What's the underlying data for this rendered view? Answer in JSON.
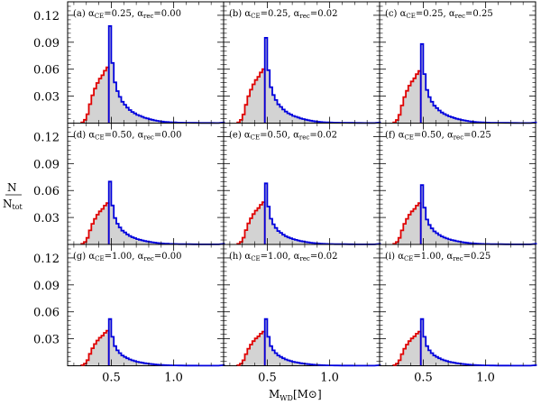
{
  "chart_data": {
    "type": "histogram-grid",
    "xlabel": {
      "main": "M",
      "sub": "WD",
      "unit": "[M",
      "unit_sym": "⊙",
      "unit_close": "]"
    },
    "ylabel": {
      "num": "N",
      "den_main": "N",
      "den_sub": "tot"
    },
    "xlim": [
      0.15,
      1.4
    ],
    "ylim": [
      0,
      0.135
    ],
    "xticks": [
      0.5,
      1.0
    ],
    "xtick_labels": [
      "0.5",
      "1.0"
    ],
    "yticks": [
      0.03,
      0.06,
      0.09,
      0.12
    ],
    "ytick_labels": [
      "0.03",
      "0.06",
      "0.09",
      "0.12"
    ],
    "split_mass": 0.485,
    "series_colors": {
      "low_mass": "#e00000",
      "high_mass": "#0000dd",
      "fill": "#d3d3d3"
    },
    "panels": [
      {
        "letter": "(a)",
        "ce": "0.25",
        "rec": "0.00",
        "red_peak": 0.062,
        "blue_peak": 0.108
      },
      {
        "letter": "(b)",
        "ce": "0.25",
        "rec": "0.02",
        "red_peak": 0.06,
        "blue_peak": 0.095
      },
      {
        "letter": "(c)",
        "ce": "0.25",
        "rec": "0.25",
        "red_peak": 0.058,
        "blue_peak": 0.088
      },
      {
        "letter": "(d)",
        "ce": "0.50",
        "rec": "0.00",
        "red_peak": 0.046,
        "blue_peak": 0.07
      },
      {
        "letter": "(e)",
        "ce": "0.50",
        "rec": "0.02",
        "red_peak": 0.047,
        "blue_peak": 0.068
      },
      {
        "letter": "(f)",
        "ce": "0.50",
        "rec": "0.25",
        "red_peak": 0.046,
        "blue_peak": 0.066
      },
      {
        "letter": "(g)",
        "ce": "1.00",
        "rec": "0.00",
        "red_peak": 0.039,
        "blue_peak": 0.052
      },
      {
        "letter": "(h)",
        "ce": "1.00",
        "rec": "0.02",
        "red_peak": 0.038,
        "blue_peak": 0.052
      },
      {
        "letter": "(i)",
        "ce": "1.00",
        "rec": "0.25",
        "red_peak": 0.038,
        "blue_peak": 0.052
      }
    ],
    "alpha_symbol": "α",
    "ce_sub": "CE",
    "rec_sub": "rec"
  }
}
